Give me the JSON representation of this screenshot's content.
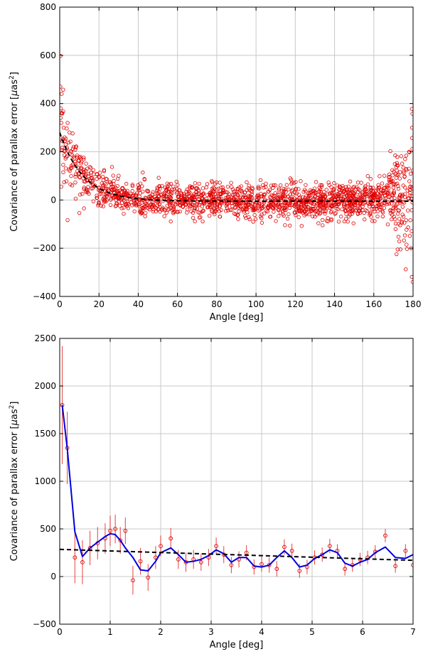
{
  "chart_data": [
    {
      "type": "scatter",
      "xlabel": "Angle [deg]",
      "ylabel_parts": [
        "Covariance of parallax error [",
        "μ",
        "as",
        "2",
        "]"
      ],
      "xlim": [
        0,
        180
      ],
      "ylim": [
        -400,
        800
      ],
      "xticks": [
        0,
        20,
        40,
        60,
        80,
        100,
        120,
        140,
        160,
        180
      ],
      "yticks": [
        -400,
        -200,
        0,
        200,
        400,
        600,
        800
      ],
      "xtick_labels": [
        "0",
        "20",
        "40",
        "60",
        "80",
        "100",
        "120",
        "140",
        "160",
        "180"
      ],
      "ytick_labels": [
        "−400",
        "−200",
        "0",
        "200",
        "400",
        "600",
        "800"
      ],
      "grid": true,
      "series": [
        {
          "kind": "scatter",
          "color": "#e00000",
          "marker": "open-circle",
          "note_trend": "points scatter around the fitted curve with a large rise near 0° and spread near 180°",
          "anchor_points": [
            [
              0.3,
              470
            ],
            [
              0.5,
              380
            ],
            [
              0.8,
              320
            ],
            [
              1.0,
              440
            ],
            [
              1.3,
              360
            ],
            [
              1.6,
              250
            ],
            [
              2.0,
              300
            ],
            [
              2.5,
              260
            ],
            [
              3.0,
              230
            ],
            [
              3.5,
              210
            ],
            [
              4.0,
              320
            ],
            [
              5.0,
              280
            ],
            [
              6.0,
              200
            ],
            [
              7.0,
              180
            ],
            [
              8.0,
              150
            ],
            [
              9.0,
              120
            ],
            [
              10.0,
              110
            ],
            [
              12.0,
              90
            ],
            [
              14.0,
              80
            ],
            [
              16.0,
              70
            ],
            [
              18.0,
              60
            ],
            [
              20.0,
              50
            ],
            [
              25.0,
              40
            ],
            [
              30.0,
              25
            ],
            [
              35.0,
              15
            ],
            [
              40.0,
              5
            ],
            [
              50.0,
              -10
            ],
            [
              60.0,
              -15
            ],
            [
              70.0,
              -20
            ],
            [
              80.0,
              -15
            ],
            [
              90.0,
              -10
            ],
            [
              100.0,
              -10
            ],
            [
              110.0,
              -15
            ],
            [
              120.0,
              -20
            ],
            [
              130.0,
              -10
            ],
            [
              140.0,
              0
            ],
            [
              150.0,
              10
            ],
            [
              160.0,
              20
            ],
            [
              170.0,
              30
            ],
            [
              175.0,
              60
            ],
            [
              178.0,
              200
            ],
            [
              179.0,
              -200
            ],
            [
              179.5,
              300
            ],
            [
              179.8,
              -340
            ]
          ]
        },
        {
          "kind": "fit",
          "color": "#000000",
          "style": "dashed",
          "model": "exponential",
          "params": {
            "a": 285,
            "tau": 12,
            "c": -5
          }
        }
      ]
    },
    {
      "type": "line",
      "xlabel": "Angle [deg]",
      "ylabel_parts": [
        "Covariance of parallax error [",
        "μ",
        "as",
        "2",
        "]"
      ],
      "xlim": [
        0,
        7
      ],
      "ylim": [
        -500,
        2500
      ],
      "xticks": [
        0,
        1,
        2,
        3,
        4,
        5,
        6,
        7
      ],
      "yticks": [
        -500,
        0,
        500,
        1000,
        1500,
        2000,
        2500
      ],
      "xtick_labels": [
        "0",
        "1",
        "2",
        "3",
        "4",
        "5",
        "6",
        "7"
      ],
      "ytick_labels": [
        "−500",
        "0",
        "500",
        "1000",
        "1500",
        "2000",
        "2500"
      ],
      "grid": true,
      "series": [
        {
          "kind": "errorbar",
          "color": "#e00000",
          "marker": "open-circle",
          "x": [
            0.05,
            0.15,
            0.3,
            0.45,
            0.6,
            0.75,
            0.9,
            1.0,
            1.1,
            1.2,
            1.3,
            1.45,
            1.6,
            1.75,
            1.9,
            2.0,
            2.2,
            2.35,
            2.5,
            2.65,
            2.8,
            2.95,
            3.1,
            3.25,
            3.4,
            3.55,
            3.7,
            3.85,
            4.0,
            4.15,
            4.3,
            4.45,
            4.6,
            4.75,
            4.9,
            5.05,
            5.2,
            5.35,
            5.5,
            5.65,
            5.8,
            5.95,
            6.1,
            6.25,
            6.45,
            6.65,
            6.85,
            7.0
          ],
          "y": [
            1800,
            1350,
            200,
            150,
            300,
            350,
            400,
            480,
            500,
            380,
            480,
            -40,
            160,
            -10,
            200,
            320,
            400,
            180,
            150,
            180,
            150,
            200,
            320,
            230,
            120,
            180,
            250,
            100,
            130,
            120,
            80,
            310,
            270,
            60,
            100,
            200,
            230,
            320,
            270,
            80,
            120,
            180,
            200,
            260,
            430,
            110,
            270,
            120
          ],
          "yerr": [
            620,
            380,
            270,
            230,
            180,
            170,
            160,
            160,
            150,
            140,
            140,
            150,
            140,
            140,
            120,
            110,
            110,
            100,
            100,
            100,
            90,
            90,
            90,
            90,
            85,
            85,
            80,
            80,
            80,
            80,
            80,
            80,
            75,
            75,
            75,
            75,
            75,
            75,
            70,
            70,
            70,
            70,
            70,
            70,
            70,
            70,
            70,
            70
          ]
        },
        {
          "kind": "line",
          "color": "#0000e0",
          "x": [
            0.05,
            0.15,
            0.3,
            0.45,
            0.6,
            0.75,
            0.9,
            1.0,
            1.1,
            1.2,
            1.3,
            1.45,
            1.6,
            1.75,
            1.9,
            2.0,
            2.2,
            2.35,
            2.5,
            2.65,
            2.8,
            2.95,
            3.1,
            3.25,
            3.4,
            3.55,
            3.7,
            3.85,
            4.0,
            4.15,
            4.3,
            4.45,
            4.6,
            4.75,
            4.9,
            5.05,
            5.2,
            5.35,
            5.5,
            5.65,
            5.8,
            5.95,
            6.1,
            6.25,
            6.45,
            6.65,
            6.85,
            7.0
          ],
          "y": [
            1800,
            1340,
            470,
            210,
            300,
            360,
            420,
            450,
            440,
            380,
            300,
            200,
            70,
            60,
            160,
            250,
            300,
            230,
            150,
            160,
            180,
            220,
            280,
            240,
            150,
            200,
            200,
            110,
            100,
            120,
            200,
            270,
            200,
            100,
            120,
            190,
            230,
            280,
            250,
            140,
            110,
            150,
            180,
            250,
            310,
            200,
            190,
            230
          ]
        },
        {
          "kind": "fit",
          "color": "#000000",
          "style": "dashed",
          "model": "linear",
          "points": [
            [
              0,
              285
            ],
            [
              7,
              170
            ]
          ]
        }
      ]
    }
  ]
}
